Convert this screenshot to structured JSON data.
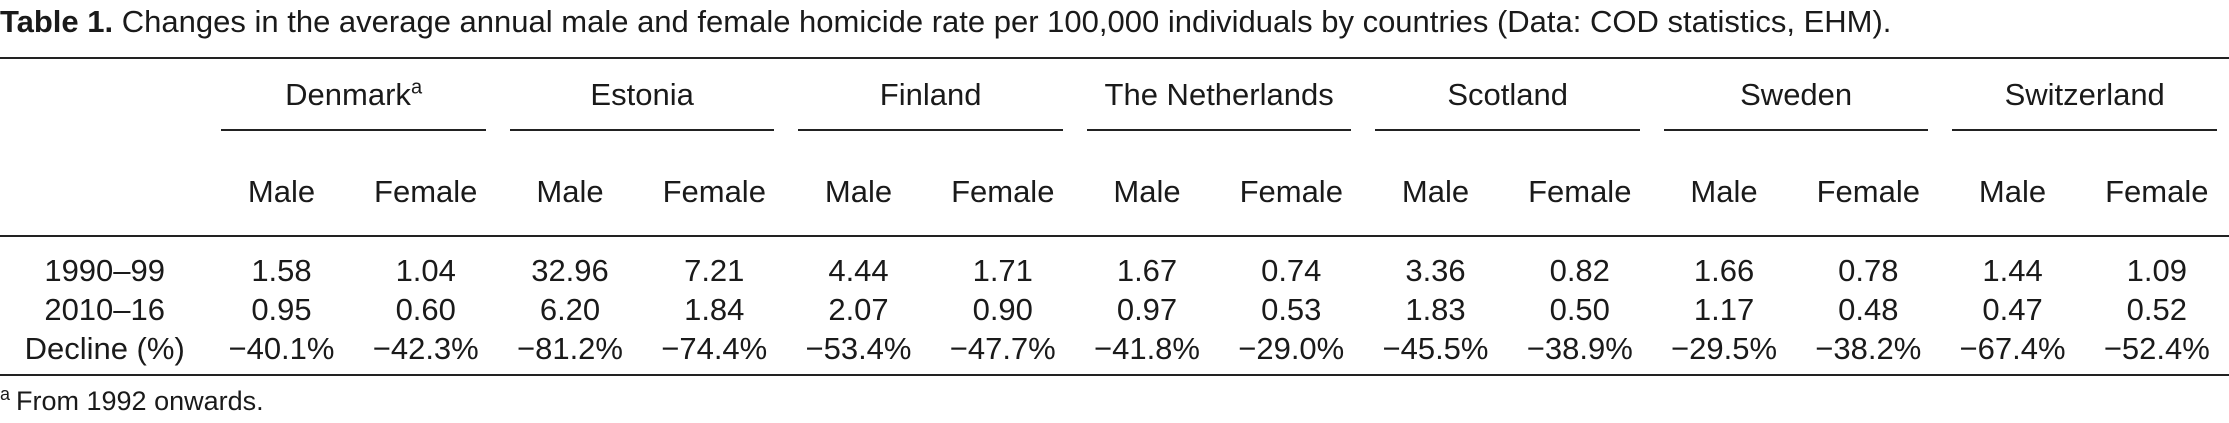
{
  "caption": {
    "label": "Table 1.",
    "text": "Changes in the average annual male and female homicide rate per 100,000 individuals by countries (Data: COD statistics, EHM)."
  },
  "table": {
    "countries": [
      {
        "name": "Denmark",
        "note": "a"
      },
      {
        "name": "Estonia",
        "note": ""
      },
      {
        "name": "Finland",
        "note": ""
      },
      {
        "name": "The Netherlands",
        "note": ""
      },
      {
        "name": "Scotland",
        "note": ""
      },
      {
        "name": "Sweden",
        "note": ""
      },
      {
        "name": "Switzerland",
        "note": ""
      }
    ],
    "sub_headers": [
      "Male",
      "Female",
      "Male",
      "Female",
      "Male",
      "Female",
      "Male",
      "Female",
      "Male",
      "Female",
      "Male",
      "Female",
      "Male",
      "Female"
    ],
    "rows": [
      {
        "label": "1990–99",
        "values": [
          "1.58",
          "1.04",
          "32.96",
          "7.21",
          "4.44",
          "1.71",
          "1.67",
          "0.74",
          "3.36",
          "0.82",
          "1.66",
          "0.78",
          "1.44",
          "1.09"
        ]
      },
      {
        "label": "2010–16",
        "values": [
          "0.95",
          "0.60",
          "6.20",
          "1.84",
          "2.07",
          "0.90",
          "0.97",
          "0.53",
          "1.83",
          "0.50",
          "1.17",
          "0.48",
          "0.47",
          "0.52"
        ]
      },
      {
        "label": "Decline (%)",
        "values": [
          "−40.1%",
          "−42.3%",
          "−81.2%",
          "−74.4%",
          "−53.4%",
          "−47.7%",
          "−41.8%",
          "−29.0%",
          "−45.5%",
          "−38.9%",
          "−29.5%",
          "−38.2%",
          "−67.4%",
          "−52.4%"
        ]
      }
    ]
  },
  "footnote": {
    "mark": "a",
    "text": "From 1992 onwards."
  }
}
